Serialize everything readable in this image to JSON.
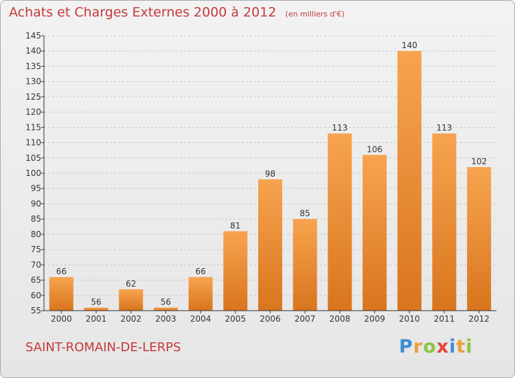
{
  "title": "Achats et Charges Externes 2000 à 2012",
  "unit_note": "(en milliers d'€)",
  "place_name": "SAINT-ROMAIN-DE-LERPS",
  "logo": {
    "letters": [
      "P",
      "r",
      "o",
      "x",
      "i",
      "t",
      "i"
    ],
    "colors": [
      "#3a8fd1",
      "#e9a13b",
      "#8cc63f",
      "#e2433a",
      "#3a8fd1",
      "#e9a13b",
      "#8cc63f"
    ]
  },
  "colors": {
    "bar_light": "#f7a44f",
    "bar_dark": "#d9751e",
    "title": "#c43a3a",
    "axis": "#333333",
    "grid": "#c8c8c8"
  },
  "chart_data": {
    "type": "bar",
    "categories": [
      "2000",
      "2001",
      "2002",
      "2003",
      "2004",
      "2005",
      "2006",
      "2007",
      "2008",
      "2009",
      "2010",
      "2011",
      "2012"
    ],
    "values": [
      66,
      56,
      62,
      56,
      66,
      81,
      98,
      85,
      113,
      106,
      140,
      113,
      102
    ],
    "title": "Achats et Charges Externes 2000 à 2012",
    "xlabel": "",
    "ylabel": "",
    "ylim": [
      55,
      145
    ],
    "yticks": [
      55,
      60,
      65,
      70,
      75,
      80,
      85,
      90,
      95,
      100,
      105,
      110,
      115,
      120,
      125,
      130,
      135,
      140,
      145
    ],
    "grid": true,
    "data_labels": true
  }
}
